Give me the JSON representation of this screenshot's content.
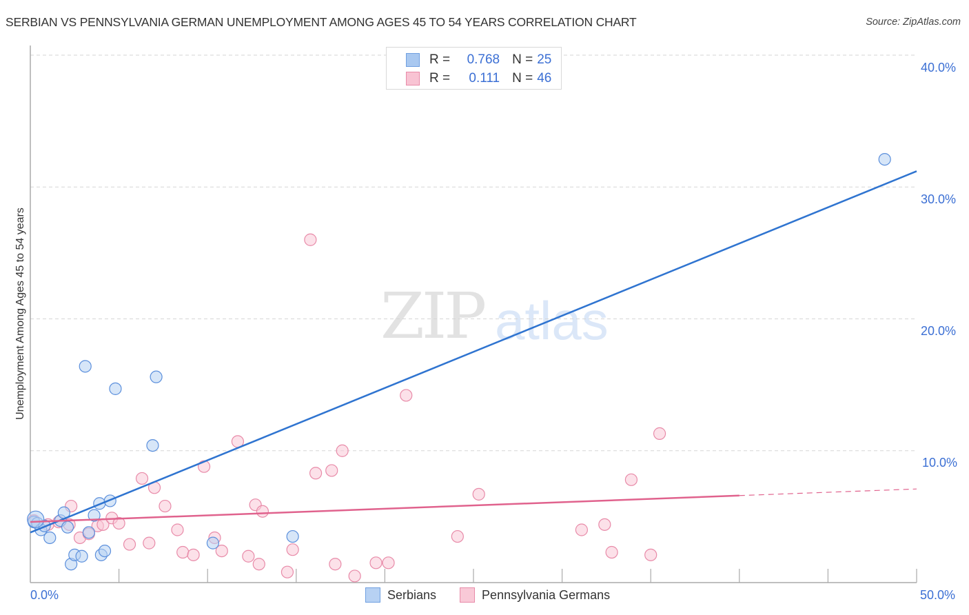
{
  "header": {
    "title": "SERBIAN VS PENNSYLVANIA GERMAN UNEMPLOYMENT AMONG AGES 45 TO 54 YEARS CORRELATION CHART",
    "source": "Source: ZipAtlas.com"
  },
  "watermark": {
    "zip": "ZIP",
    "atlas": "atlas"
  },
  "legend_top": {
    "rows": [
      {
        "r_label": "R =",
        "r_value": "0.768",
        "n_label": "N =",
        "n_value": "25",
        "color": "#a9c8f0",
        "border": "#6f9fe0"
      },
      {
        "r_label": "R =",
        "r_value": "0.111",
        "n_label": "N =",
        "n_value": "46",
        "color": "#f8c3d3",
        "border": "#e88aa8"
      }
    ]
  },
  "legend_bottom": {
    "items": [
      {
        "label": "Serbians",
        "color": "#b7d1f3",
        "border": "#6f9fe0"
      },
      {
        "label": "Pennsylvania Germans",
        "color": "#f9c9d7",
        "border": "#e88aa8"
      }
    ]
  },
  "axes": {
    "y_label": "Unemployment Among Ages 45 to 54 years",
    "y_ticks": [
      "10.0%",
      "20.0%",
      "30.0%",
      "40.0%"
    ],
    "x_ticks": [
      "0.0%",
      "50.0%"
    ]
  },
  "colors": {
    "serbians_fill": "#b7d1f3",
    "serbians_stroke": "#5b8fdc",
    "serbians_line": "#2f74d0",
    "pa_fill": "#f9c9d7",
    "pa_stroke": "#e88aa8",
    "pa_line": "#e0628d",
    "tick_text": "#3b6fd4"
  },
  "chart_data": {
    "type": "scatter",
    "title": "SERBIAN VS PENNSYLVANIA GERMAN UNEMPLOYMENT AMONG AGES 45 TO 54 YEARS CORRELATION CHART",
    "xlabel": "",
    "ylabel": "Unemployment Among Ages 45 to 54 years",
    "xlim": [
      0,
      50
    ],
    "ylim": [
      0,
      40
    ],
    "x_tick_labels": [
      "0.0%",
      "50.0%"
    ],
    "y_tick_labels": [
      "10.0%",
      "20.0%",
      "30.0%",
      "40.0%"
    ],
    "grid": "horizontal dashed",
    "legend_position": "top-center and bottom-center",
    "series": [
      {
        "name": "Serbians",
        "R": 0.768,
        "N": 25,
        "points": [
          [
            0.2,
            4.6
          ],
          [
            0.4,
            4.5
          ],
          [
            0.6,
            4.0
          ],
          [
            0.8,
            4.3
          ],
          [
            1.1,
            3.4
          ],
          [
            1.7,
            4.7
          ],
          [
            1.9,
            5.3
          ],
          [
            2.1,
            4.2
          ],
          [
            2.3,
            1.4
          ],
          [
            2.5,
            2.1
          ],
          [
            2.9,
            2.0
          ],
          [
            3.1,
            16.4
          ],
          [
            3.3,
            3.8
          ],
          [
            3.6,
            5.1
          ],
          [
            3.9,
            6.0
          ],
          [
            4.0,
            2.1
          ],
          [
            4.2,
            2.4
          ],
          [
            4.5,
            6.2
          ],
          [
            4.8,
            14.7
          ],
          [
            6.9,
            10.4
          ],
          [
            7.1,
            15.6
          ],
          [
            10.3,
            3.0
          ],
          [
            14.8,
            3.5
          ],
          [
            48.2,
            32.1
          ],
          [
            0.3,
            4.8
          ]
        ],
        "trendline": {
          "x": [
            0,
            50
          ],
          "y": [
            3.8,
            31.2
          ],
          "style": "solid"
        }
      },
      {
        "name": "Pennsylvania Germans",
        "R": 0.111,
        "N": 46,
        "points": [
          [
            0.2,
            4.7
          ],
          [
            1.0,
            4.4
          ],
          [
            1.6,
            4.6
          ],
          [
            2.2,
            4.4
          ],
          [
            2.3,
            5.8
          ],
          [
            2.8,
            3.4
          ],
          [
            3.3,
            3.7
          ],
          [
            3.8,
            4.3
          ],
          [
            4.1,
            4.4
          ],
          [
            4.6,
            4.9
          ],
          [
            5.0,
            4.5
          ],
          [
            5.6,
            2.9
          ],
          [
            6.3,
            7.9
          ],
          [
            6.7,
            3.0
          ],
          [
            7.0,
            7.2
          ],
          [
            7.6,
            5.8
          ],
          [
            8.3,
            4.0
          ],
          [
            8.6,
            2.3
          ],
          [
            9.2,
            2.1
          ],
          [
            9.8,
            8.8
          ],
          [
            10.4,
            3.4
          ],
          [
            10.8,
            2.4
          ],
          [
            11.7,
            10.7
          ],
          [
            12.3,
            2.0
          ],
          [
            12.7,
            5.9
          ],
          [
            12.9,
            1.4
          ],
          [
            13.1,
            5.4
          ],
          [
            14.5,
            0.8
          ],
          [
            14.8,
            2.5
          ],
          [
            15.8,
            26.0
          ],
          [
            16.1,
            8.3
          ],
          [
            17.0,
            8.5
          ],
          [
            17.2,
            1.4
          ],
          [
            17.6,
            10.0
          ],
          [
            18.3,
            0.5
          ],
          [
            19.5,
            1.5
          ],
          [
            20.2,
            1.5
          ],
          [
            21.2,
            14.2
          ],
          [
            24.1,
            3.5
          ],
          [
            25.3,
            6.7
          ],
          [
            31.1,
            4.0
          ],
          [
            32.4,
            4.4
          ],
          [
            32.8,
            2.3
          ],
          [
            33.9,
            7.8
          ],
          [
            35.0,
            2.1
          ],
          [
            35.5,
            11.3
          ]
        ],
        "trendline": {
          "x": [
            0,
            40,
            50
          ],
          "y": [
            4.6,
            6.6,
            7.1
          ],
          "style": "solid to 40%, dashed beyond"
        }
      }
    ]
  }
}
